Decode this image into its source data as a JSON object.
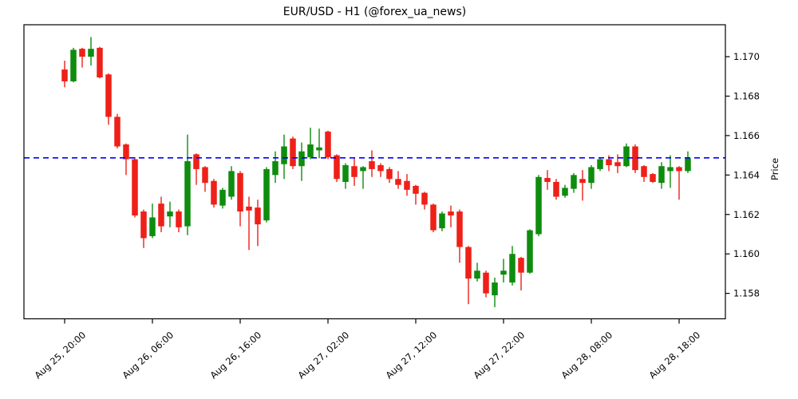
{
  "title": "EUR/USD - H1 (@forex_ua_news)",
  "ylabel": "Price",
  "chart_data": {
    "type": "candlestick",
    "symbol": "EUR/USD",
    "timeframe": "H1",
    "source_handle": "@forex_ua_news",
    "grid": false,
    "legend": "none",
    "y_axis_side": "right",
    "ylim": [
      1.15671,
      1.17162
    ],
    "y_ticks": [
      "1.158",
      "1.160",
      "1.162",
      "1.164",
      "1.166",
      "1.168",
      "1.170"
    ],
    "x_ticks": [
      {
        "candle_index": 0,
        "label": "Aug 25, 20:00"
      },
      {
        "candle_index": 10,
        "label": "Aug 26, 06:00"
      },
      {
        "candle_index": 20,
        "label": "Aug 26, 16:00"
      },
      {
        "candle_index": 30,
        "label": "Aug 27, 02:00"
      },
      {
        "candle_index": 40,
        "label": "Aug 27, 12:00"
      },
      {
        "candle_index": 50,
        "label": "Aug 27, 22:00"
      },
      {
        "candle_index": 60,
        "label": "Aug 28, 08:00"
      },
      {
        "candle_index": 70,
        "label": "Aug 28, 18:00"
      }
    ],
    "reference_line": {
      "price": 1.16487,
      "color": "#0000ff",
      "style": "dashed"
    },
    "colors": {
      "bullish": "#0e8c0e",
      "bearish": "#ee2018",
      "axis": "#000000"
    },
    "candles_ohlc": [
      [
        1.16935,
        1.1698,
        1.16845,
        1.16875
      ],
      [
        1.16875,
        1.17045,
        1.1687,
        1.17035
      ],
      [
        1.1704,
        1.17045,
        1.16945,
        1.17
      ],
      [
        1.17,
        1.171,
        1.16955,
        1.1704
      ],
      [
        1.17045,
        1.1705,
        1.1689,
        1.16895
      ],
      [
        1.1691,
        1.16915,
        1.16655,
        1.16695
      ],
      [
        1.16695,
        1.1671,
        1.16535,
        1.16545
      ],
      [
        1.16555,
        1.1656,
        1.164,
        1.1648
      ],
      [
        1.1648,
        1.1649,
        1.16185,
        1.16195
      ],
      [
        1.16215,
        1.16225,
        1.1603,
        1.1608
      ],
      [
        1.1609,
        1.16255,
        1.1608,
        1.16185
      ],
      [
        1.16255,
        1.1629,
        1.1611,
        1.1614
      ],
      [
        1.1619,
        1.16265,
        1.16135,
        1.16215
      ],
      [
        1.16215,
        1.16225,
        1.1611,
        1.16135
      ],
      [
        1.1614,
        1.16605,
        1.16095,
        1.1647
      ],
      [
        1.16505,
        1.1651,
        1.1635,
        1.1643
      ],
      [
        1.1644,
        1.16445,
        1.16315,
        1.1636
      ],
      [
        1.1637,
        1.1638,
        1.16235,
        1.1625
      ],
      [
        1.16245,
        1.16335,
        1.1623,
        1.16325
      ],
      [
        1.1629,
        1.16445,
        1.16275,
        1.1642
      ],
      [
        1.1641,
        1.1642,
        1.1614,
        1.16215
      ],
      [
        1.1624,
        1.1629,
        1.1602,
        1.1622
      ],
      [
        1.16235,
        1.16275,
        1.1604,
        1.1615
      ],
      [
        1.1617,
        1.1644,
        1.1616,
        1.1643
      ],
      [
        1.164,
        1.1652,
        1.1636,
        1.1647
      ],
      [
        1.16455,
        1.16605,
        1.1638,
        1.16545
      ],
      [
        1.16585,
        1.16595,
        1.1643,
        1.16445
      ],
      [
        1.16445,
        1.16565,
        1.1637,
        1.1652
      ],
      [
        1.1649,
        1.1664,
        1.1648,
        1.16555
      ],
      [
        1.16525,
        1.16635,
        1.16485,
        1.1654
      ],
      [
        1.1662,
        1.16625,
        1.1648,
        1.1649
      ],
      [
        1.165,
        1.16505,
        1.16365,
        1.1638
      ],
      [
        1.16365,
        1.1646,
        1.1633,
        1.1645
      ],
      [
        1.16445,
        1.1649,
        1.16345,
        1.1639
      ],
      [
        1.1642,
        1.16445,
        1.1633,
        1.1644
      ],
      [
        1.1647,
        1.16525,
        1.1639,
        1.1643
      ],
      [
        1.1645,
        1.1646,
        1.1639,
        1.1642
      ],
      [
        1.1643,
        1.1644,
        1.1636,
        1.1638
      ],
      [
        1.1638,
        1.1642,
        1.1633,
        1.1635
      ],
      [
        1.1637,
        1.16405,
        1.16295,
        1.16325
      ],
      [
        1.16345,
        1.1635,
        1.1625,
        1.16305
      ],
      [
        1.1631,
        1.16315,
        1.16225,
        1.1625
      ],
      [
        1.1625,
        1.16255,
        1.1611,
        1.1612
      ],
      [
        1.1613,
        1.16215,
        1.16115,
        1.16205
      ],
      [
        1.16215,
        1.16245,
        1.16135,
        1.16195
      ],
      [
        1.16215,
        1.16225,
        1.15955,
        1.16035
      ],
      [
        1.16035,
        1.1604,
        1.15745,
        1.15875
      ],
      [
        1.15875,
        1.15955,
        1.1586,
        1.15915
      ],
      [
        1.15905,
        1.15915,
        1.1578,
        1.158
      ],
      [
        1.1579,
        1.1588,
        1.1573,
        1.15855
      ],
      [
        1.15895,
        1.15975,
        1.15855,
        1.15915
      ],
      [
        1.15855,
        1.1604,
        1.1584,
        1.16
      ],
      [
        1.1598,
        1.15985,
        1.15815,
        1.15905
      ],
      [
        1.15905,
        1.16125,
        1.159,
        1.1612
      ],
      [
        1.161,
        1.164,
        1.1609,
        1.1639
      ],
      [
        1.16385,
        1.16425,
        1.16325,
        1.16365
      ],
      [
        1.16365,
        1.1638,
        1.16275,
        1.1629
      ],
      [
        1.16295,
        1.1635,
        1.16285,
        1.16335
      ],
      [
        1.1633,
        1.1641,
        1.1631,
        1.164
      ],
      [
        1.1638,
        1.16425,
        1.1627,
        1.1636
      ],
      [
        1.1636,
        1.1645,
        1.1633,
        1.1644
      ],
      [
        1.1643,
        1.1649,
        1.1642,
        1.1648
      ],
      [
        1.1648,
        1.165,
        1.1642,
        1.1645
      ],
      [
        1.16465,
        1.16505,
        1.1641,
        1.16445
      ],
      [
        1.16445,
        1.1656,
        1.1644,
        1.16545
      ],
      [
        1.16545,
        1.16555,
        1.1641,
        1.16425
      ],
      [
        1.16445,
        1.1645,
        1.16365,
        1.1639
      ],
      [
        1.16405,
        1.1641,
        1.1636,
        1.16365
      ],
      [
        1.1636,
        1.16465,
        1.1633,
        1.16445
      ],
      [
        1.1642,
        1.165,
        1.16335,
        1.1644
      ],
      [
        1.1644,
        1.16445,
        1.16275,
        1.1642
      ],
      [
        1.1642,
        1.1652,
        1.1641,
        1.16485
      ]
    ]
  }
}
